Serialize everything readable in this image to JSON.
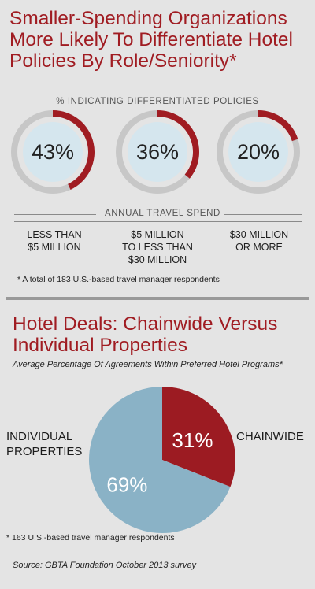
{
  "title": "Smaller-Spending Organizations More Likely To Differentiate Hotel Policies By Role/Seniority*",
  "donut_subtitle": "% INDICATING DIFFERENTIATED POLICIES",
  "spend_heading": "ANNUAL TRAVEL SPEND",
  "footnote1": "* A total of 183 U.S.-based travel manager respondents",
  "pie_title": "Hotel Deals: Chainwide Versus Individual Properties",
  "pie_subtitle": "Average Percentage Of Agreements Within Preferred Hotel Programs*",
  "footnote2": "* 163 U.S.-based travel manager respondents",
  "source": "Source: GBTA Foundation October 2013 survey",
  "colors": {
    "accent": "#a01c22",
    "ring_track": "#c7c7c7",
    "donut_center": "#d5e6ee",
    "pie_blue": "#8ab2c6",
    "pie_red": "#9c1b22",
    "background": "#e4e4e4"
  },
  "chart_data": [
    {
      "type": "donut",
      "title": "% INDICATING DIFFERENTIATED POLICIES",
      "xlabel": "ANNUAL TRAVEL SPEND",
      "categories": [
        "LESS THAN $5 MILLION",
        "$5 MILLION TO LESS THAN $30 MILLION",
        "$30 MILLION OR MORE"
      ],
      "category_lines": [
        [
          "LESS THAN",
          "$5 MILLION"
        ],
        [
          "$5 MILLION",
          "TO LESS THAN",
          "$30 MILLION"
        ],
        [
          "$30 MILLION",
          "OR MORE"
        ]
      ],
      "values": [
        43,
        36,
        20
      ],
      "value_labels": [
        "43%",
        "36%",
        "20%"
      ]
    },
    {
      "type": "pie",
      "title": "Hotel Deals: Chainwide Versus Individual Properties",
      "categories": [
        "CHAINWIDE",
        "INDIVIDUAL PROPERTIES"
      ],
      "category_lines": [
        [
          "CHAINWIDE"
        ],
        [
          "INDIVIDUAL",
          "PROPERTIES"
        ]
      ],
      "values": [
        31,
        69
      ],
      "value_labels": [
        "31%",
        "69%"
      ]
    }
  ]
}
